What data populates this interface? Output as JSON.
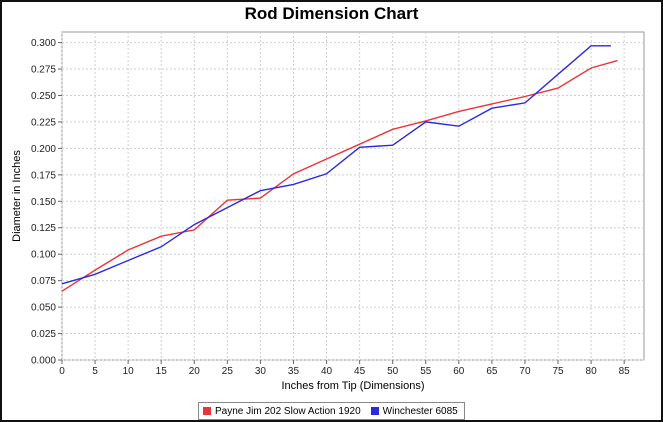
{
  "chart_data": {
    "type": "line",
    "title": "Rod Dimension Chart",
    "xlabel": "Inches from Tip (Dimensions)",
    "ylabel": "Diameter in Inches",
    "xlim": [
      0,
      88
    ],
    "ylim": [
      0,
      0.31
    ],
    "x_ticks": [
      0,
      5,
      10,
      15,
      20,
      25,
      30,
      35,
      40,
      45,
      50,
      55,
      60,
      65,
      70,
      75,
      80,
      85
    ],
    "y_ticks": [
      "0.000",
      "0.025",
      "0.050",
      "0.075",
      "0.100",
      "0.125",
      "0.150",
      "0.175",
      "0.200",
      "0.225",
      "0.250",
      "0.275",
      "0.300"
    ],
    "grid": true,
    "legend_position": "bottom",
    "series": [
      {
        "name": "Payne Jim 202 Slow Action 1920",
        "color": "#e8353a",
        "x": [
          0,
          5,
          10,
          15,
          20,
          25,
          30,
          35,
          40,
          45,
          50,
          55,
          60,
          65,
          70,
          75,
          80,
          84
        ],
        "values": [
          0.065,
          0.085,
          0.104,
          0.117,
          0.123,
          0.151,
          0.153,
          0.176,
          0.19,
          0.204,
          0.218,
          0.226,
          0.235,
          0.242,
          0.249,
          0.257,
          0.276,
          0.283
        ]
      },
      {
        "name": "Winchester 6085",
        "color": "#2a2ae0",
        "x": [
          0,
          5,
          10,
          15,
          20,
          25,
          30,
          35,
          40,
          45,
          50,
          55,
          60,
          65,
          70,
          75,
          80,
          83
        ],
        "values": [
          0.072,
          0.081,
          0.094,
          0.107,
          0.128,
          0.144,
          0.16,
          0.166,
          0.176,
          0.201,
          0.203,
          0.225,
          0.221,
          0.238,
          0.243,
          0.27,
          0.297,
          0.297
        ]
      }
    ]
  }
}
